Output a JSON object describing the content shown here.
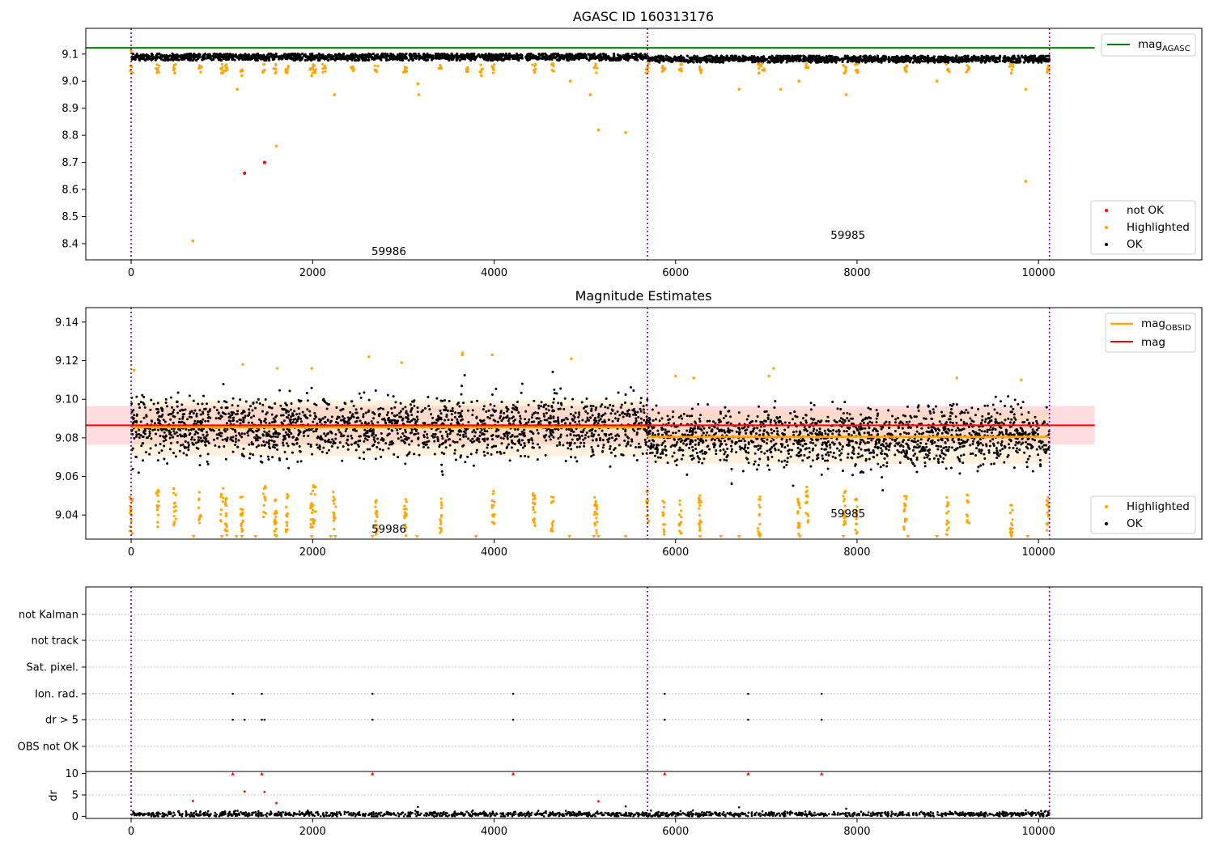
{
  "colors": {
    "ok": "#000000",
    "highlighted": "#ffa500",
    "not_ok": "#ff0000",
    "agasc_line": "#008000",
    "mag_line": "#ff0000",
    "obsid_line": "#ffa500",
    "band_mag": "#ff9aa6",
    "band_obsid": "#ffd7a0",
    "obs_divider": "#800080",
    "grid": "#b0b0b0"
  },
  "chart_data": [
    {
      "type": "scatter",
      "title": "AGASC ID 160313176",
      "xlim": [
        -500,
        11800
      ],
      "ylim": [
        8.34,
        9.195
      ],
      "x_ticks": [
        0,
        2000,
        4000,
        6000,
        8000,
        10000
      ],
      "y_ticks": [
        8.4,
        8.5,
        8.6,
        8.7,
        8.8,
        8.9,
        9.0,
        9.1
      ],
      "y_tick_labels": [
        "8.4",
        "8.5",
        "8.6",
        "8.7",
        "8.8",
        "8.9",
        "9.0",
        "9.1"
      ],
      "observation_boundaries": [
        0,
        5690,
        10120
      ],
      "observation_labels": [
        {
          "label": "59986",
          "x": 2840,
          "y": 8.37
        },
        {
          "label": "59985",
          "x": 7900,
          "y": 8.43
        }
      ],
      "lines": [
        {
          "name": "mag_AGASC",
          "y": 9.123,
          "x_range": [
            -500,
            10620
          ]
        }
      ],
      "series": [
        {
          "name": "OK",
          "ok_band": {
            "x_range": [
              0,
              10120
            ],
            "center_obs1": 9.089,
            "center_obs2": 9.081,
            "spread": 0.012,
            "count": 3000
          }
        },
        {
          "name": "Highlighted",
          "points": [
            [
              0,
              9.11
            ],
            [
              290,
              9.04
            ],
            [
              480,
              9.03
            ],
            [
              680,
              8.41
            ],
            [
              760,
              9.05
            ],
            [
              1000,
              9.03
            ],
            [
              1050,
              9.05
            ],
            [
              1170,
              8.97
            ],
            [
              1220,
              9.02
            ],
            [
              1470,
              9.04
            ],
            [
              1590,
              9.03
            ],
            [
              1600,
              8.76
            ],
            [
              1720,
              9.04
            ],
            [
              1990,
              9.02
            ],
            [
              2020,
              9.04
            ],
            [
              2130,
              9.05
            ],
            [
              2240,
              8.95
            ],
            [
              2440,
              9.05
            ],
            [
              2700,
              9.04
            ],
            [
              3020,
              9.04
            ],
            [
              3160,
              8.99
            ],
            [
              3170,
              8.95
            ],
            [
              3410,
              9.05
            ],
            [
              3700,
              9.04
            ],
            [
              3860,
              9.02
            ],
            [
              3990,
              9.05
            ],
            [
              4440,
              9.04
            ],
            [
              4640,
              9.04
            ],
            [
              4840,
              9.0
            ],
            [
              5060,
              8.95
            ],
            [
              5120,
              9.05
            ],
            [
              5150,
              8.82
            ],
            [
              5450,
              8.81
            ],
            [
              5690,
              9.05
            ],
            [
              5870,
              9.04
            ],
            [
              6050,
              9.04
            ],
            [
              6270,
              9.04
            ],
            [
              6700,
              8.97
            ],
            [
              6920,
              9.03
            ],
            [
              6960,
              9.04
            ],
            [
              7160,
              8.97
            ],
            [
              7360,
              9.0
            ],
            [
              7450,
              9.05
            ],
            [
              7860,
              9.03
            ],
            [
              7880,
              8.95
            ],
            [
              7990,
              9.04
            ],
            [
              8530,
              9.04
            ],
            [
              8880,
              9.0
            ],
            [
              9000,
              9.04
            ],
            [
              9220,
              9.04
            ],
            [
              9700,
              9.03
            ],
            [
              9860,
              8.97
            ],
            [
              9860,
              8.63
            ],
            [
              10100,
              9.04
            ]
          ]
        },
        {
          "name": "not OK",
          "points": [
            [
              1250,
              8.66
            ],
            [
              1470,
              8.7
            ]
          ]
        }
      ],
      "legends": [
        {
          "placement": "upper right",
          "entries": [
            "mag_AGASC"
          ]
        },
        {
          "placement": "lower right",
          "entries": [
            "not OK",
            "Highlighted",
            "OK"
          ]
        }
      ]
    },
    {
      "type": "scatter",
      "title": "Magnitude Estimates",
      "xlim": [
        -500,
        11800
      ],
      "ylim": [
        9.0275,
        9.1475
      ],
      "x_ticks": [
        0,
        2000,
        4000,
        6000,
        8000,
        10000
      ],
      "y_ticks": [
        9.04,
        9.06,
        9.08,
        9.1,
        9.12,
        9.14
      ],
      "y_tick_labels": [
        "9.04",
        "9.06",
        "9.08",
        "9.10",
        "9.12",
        "9.14"
      ],
      "observation_boundaries": [
        0,
        5690,
        10120
      ],
      "observation_labels": [
        {
          "label": "59986",
          "x": 2840,
          "y": 9.0325
        },
        {
          "label": "59985",
          "x": 7900,
          "y": 9.0405
        }
      ],
      "lines": [
        {
          "name": "mag",
          "y": 9.0865,
          "band": [
            9.0765,
            9.0965
          ],
          "x_range": [
            -500,
            10620
          ]
        },
        {
          "name": "mag_OBSID",
          "segments": [
            {
              "x_range": [
                0,
                5690
              ],
              "y": 9.0855,
              "band": [
                9.0705,
                9.0995
              ]
            },
            {
              "x_range": [
                5690,
                10120
              ],
              "y": 9.0805,
              "band": [
                9.0665,
                9.0945
              ]
            }
          ]
        }
      ],
      "series": [
        {
          "name": "OK",
          "ok_band": {
            "x_range": [
              0,
              10120
            ],
            "center_obs1": 9.0855,
            "center_obs2": 9.0805,
            "spread": 0.0075,
            "count": 3500
          }
        },
        {
          "name": "Highlighted",
          "clusters_x": [
            0,
            290,
            480,
            760,
            1000,
            1050,
            1220,
            1470,
            1590,
            1720,
            1990,
            2020,
            2240,
            2700,
            3020,
            3410,
            3990,
            4440,
            4640,
            5120,
            5690,
            5870,
            6050,
            6270,
            6920,
            7360,
            7450,
            7860,
            7990,
            8530,
            9000,
            9220,
            9700,
            10100
          ],
          "points": [
            [
              30,
              9.115
            ],
            [
              1230,
              9.118
            ],
            [
              1610,
              9.116
            ],
            [
              1990,
              9.116
            ],
            [
              2620,
              9.122
            ],
            [
              2980,
              9.119
            ],
            [
              3650,
              9.124
            ],
            [
              3650,
              9.123
            ],
            [
              3980,
              9.123
            ],
            [
              4850,
              9.121
            ],
            [
              6000,
              9.112
            ],
            [
              6200,
              9.111
            ],
            [
              7030,
              9.112
            ],
            [
              7080,
              9.116
            ],
            [
              9100,
              9.111
            ],
            [
              9810,
              9.11
            ]
          ],
          "clipped_x": [
            690,
            1000,
            1160,
            1220,
            1370,
            1600,
            1990,
            2200,
            2250,
            2660,
            3150,
            3800,
            4830,
            5100,
            5150,
            5450,
            6270,
            6500,
            6700,
            6930,
            7370,
            7850,
            8560,
            8880,
            9700,
            9880
          ]
        }
      ],
      "legends": [
        {
          "placement": "upper right",
          "entries": [
            "mag_OBSID",
            "mag"
          ]
        },
        {
          "placement": "lower right",
          "entries": [
            "Highlighted",
            "OK"
          ]
        }
      ]
    },
    {
      "type": "scatter",
      "title": "",
      "xlim": [
        -500,
        11800
      ],
      "flag_rows": [
        "not Kalman",
        "not track",
        "Sat. pixel.",
        "Ion. rad.",
        "dr > 5",
        "OBS not OK"
      ],
      "flag_points": {
        "Ion. rad.": [
          1120,
          1440,
          2660,
          4210,
          5880,
          6800,
          7610
        ],
        "dr > 5": [
          1120,
          1250,
          1440,
          1470,
          2660,
          4210,
          5880,
          6800,
          7610
        ]
      },
      "observation_boundaries": [
        0,
        5690,
        10120
      ],
      "dr_panel": {
        "ylabel": "dr",
        "ylim": [
          -0.5,
          10.5
        ],
        "y_ticks": [
          0,
          5,
          10
        ],
        "y_tick_labels": [
          "0",
          "5",
          "10"
        ],
        "x_ticks": [
          0,
          2000,
          4000,
          6000,
          8000,
          10000
        ],
        "clipped_at_10_x": [
          1120,
          1440,
          2660,
          4210,
          5880,
          6800,
          7610
        ],
        "not_ok_points": [
          [
            680,
            3.6
          ],
          [
            1250,
            5.8
          ],
          [
            1470,
            5.7
          ],
          [
            1600,
            3.1
          ],
          [
            5150,
            3.5
          ]
        ],
        "ok_band": {
          "x_range": [
            0,
            10120
          ],
          "center": 0.5,
          "spread": 0.3,
          "count": 1500
        },
        "ok_scattered": [
          [
            3160,
            2.2
          ],
          [
            4790,
            1.3
          ],
          [
            5450,
            2.3
          ],
          [
            6700,
            2.1
          ],
          [
            7880,
            1.8
          ],
          [
            9860,
            1.4
          ]
        ]
      }
    }
  ]
}
